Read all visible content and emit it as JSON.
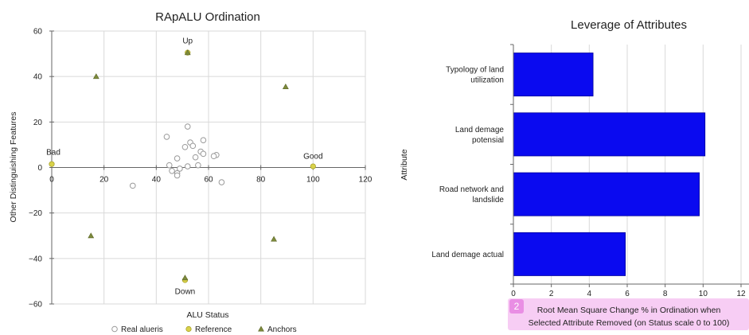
{
  "chart_data": [
    {
      "type": "scatter",
      "title": "RApALU Ordination",
      "xlabel": "ALU Status",
      "ylabel": "Other Distinguishing Features",
      "xlim": [
        0,
        120
      ],
      "ylim": [
        -60,
        60
      ],
      "xticks": [
        0,
        20,
        40,
        60,
        80,
        100,
        120
      ],
      "yticks": [
        -60,
        -40,
        -20,
        0,
        20,
        40,
        60
      ],
      "grid": true,
      "legend_position": "bottom",
      "series": [
        {
          "name": "Real alueris",
          "marker": "circle-open",
          "color": "#9a9a9a",
          "points": [
            [
              52,
              18
            ],
            [
              44,
              13.5
            ],
            [
              58,
              12
            ],
            [
              53,
              11
            ],
            [
              51,
              9
            ],
            [
              54,
              9.5
            ],
            [
              57,
              7
            ],
            [
              58,
              6
            ],
            [
              55,
              4.5
            ],
            [
              63,
              5.5
            ],
            [
              62,
              5
            ],
            [
              48,
              4
            ],
            [
              45,
              1
            ],
            [
              56,
              1
            ],
            [
              52,
              0.5
            ],
            [
              46,
              -1.5
            ],
            [
              48,
              -2.5
            ],
            [
              49,
              -0.5
            ],
            [
              48,
              -3.5
            ],
            [
              31,
              -8
            ],
            [
              65,
              -6.5
            ]
          ]
        },
        {
          "name": "Reference",
          "marker": "circle-filled",
          "color": "#d9d24a",
          "points": [
            [
              0,
              1.5
            ],
            [
              100,
              0.5
            ],
            [
              52,
              50.5
            ],
            [
              51,
              -49.5
            ]
          ]
        },
        {
          "name": "Anchors",
          "marker": "triangle",
          "color": "#7d8a3c",
          "points": [
            [
              17,
              40
            ],
            [
              89.5,
              35.5
            ],
            [
              15,
              -30
            ],
            [
              85,
              -31.5
            ],
            [
              52,
              50.5
            ],
            [
              51,
              -48.5
            ]
          ]
        }
      ],
      "annotations": [
        {
          "text": "Up",
          "x": 52,
          "y": 50
        },
        {
          "text": "Down",
          "x": 51,
          "y": -50
        },
        {
          "text": "Bad",
          "x": 0,
          "y": 1
        },
        {
          "text": "Good",
          "x": 100,
          "y": 0
        }
      ]
    },
    {
      "type": "bar",
      "orientation": "horizontal",
      "title": "Leverage of Attributes",
      "ylabel": "Attribute",
      "xlabel_lines": [
        "Root Mean Square Change % in Ordination when",
        "Selected Attribute Removed (on Status scale 0 to 100)"
      ],
      "xlim": [
        0,
        12
      ],
      "xticks": [
        0,
        2,
        4,
        6,
        8,
        10,
        12
      ],
      "xtick_labels": [
        "0",
        "2",
        "4",
        "6",
        "8",
        "10",
        "12"
      ],
      "color": "#0a0af0",
      "categories": [
        {
          "lines": [
            "Typology of land",
            "utilization"
          ]
        },
        {
          "lines": [
            "Land demage",
            "potensial"
          ]
        },
        {
          "lines": [
            "Road network and",
            "landslide"
          ]
        },
        {
          "lines": [
            "Land demage actual"
          ]
        }
      ],
      "values": [
        4.2,
        10.1,
        9.8,
        5.9
      ],
      "badge": "2"
    }
  ]
}
